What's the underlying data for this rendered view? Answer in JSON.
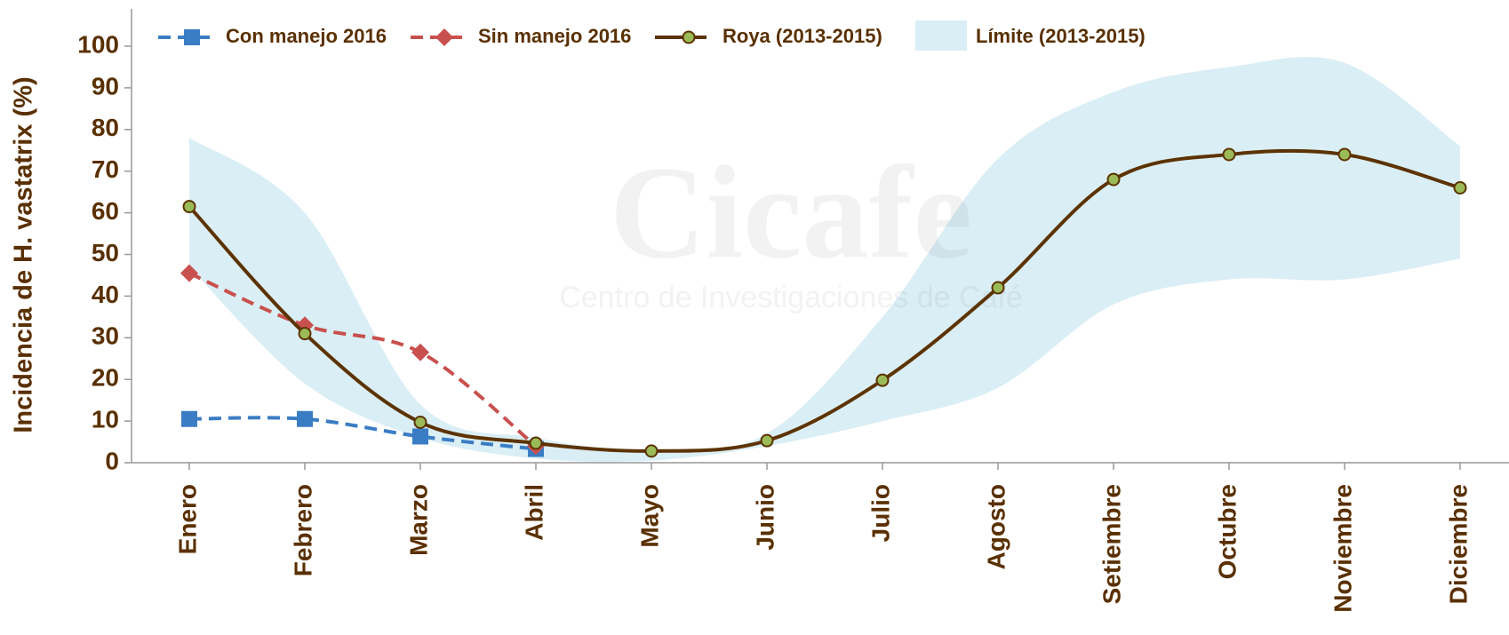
{
  "chart_data": {
    "type": "line",
    "ylabel": "Incidencia de H. vastatrix (%)",
    "watermark": [
      "Cicafe",
      "Centro de Investigaciones de Café"
    ],
    "categories": [
      "Enero",
      "Febrero",
      "Marzo",
      "Abril",
      "Mayo",
      "Junio",
      "Julio",
      "Agosto",
      "Setiembre",
      "Octubre",
      "Noviembre",
      "Diciembre"
    ],
    "band": {
      "name": "Límite (2013-2015)",
      "color": "#daeef5",
      "upper": [
        78,
        60,
        14,
        6,
        3,
        7,
        35,
        73,
        89,
        95,
        96,
        76
      ],
      "lower": [
        47,
        19,
        6,
        1,
        0.5,
        4,
        10,
        18,
        38,
        44,
        44,
        49
      ]
    },
    "series": [
      {
        "name": "Con manejo 2016",
        "color": "#3b7dc4",
        "dash": true,
        "marker": "square",
        "values": [
          10.5,
          10.5,
          6.3,
          3.3,
          null,
          null,
          null,
          null,
          null,
          null,
          null,
          null
        ]
      },
      {
        "name": "Sin manejo 2016",
        "color": "#c8504e",
        "dash": true,
        "marker": "diamond",
        "values": [
          45.5,
          33,
          26.5,
          4,
          null,
          null,
          null,
          null,
          null,
          null,
          null,
          null
        ]
      },
      {
        "name": "Roya (2013-2015)",
        "color": "#5c3300",
        "dash": false,
        "marker": "circle",
        "values": [
          61.5,
          31,
          9.7,
          4.7,
          2.8,
          5.3,
          19.8,
          42,
          68,
          74,
          74,
          66
        ]
      }
    ],
    "ylim": [
      0,
      108
    ],
    "yticks": [
      0,
      10,
      20,
      30,
      40,
      50,
      60,
      70,
      80,
      90,
      100
    ],
    "legend": "top-left"
  }
}
